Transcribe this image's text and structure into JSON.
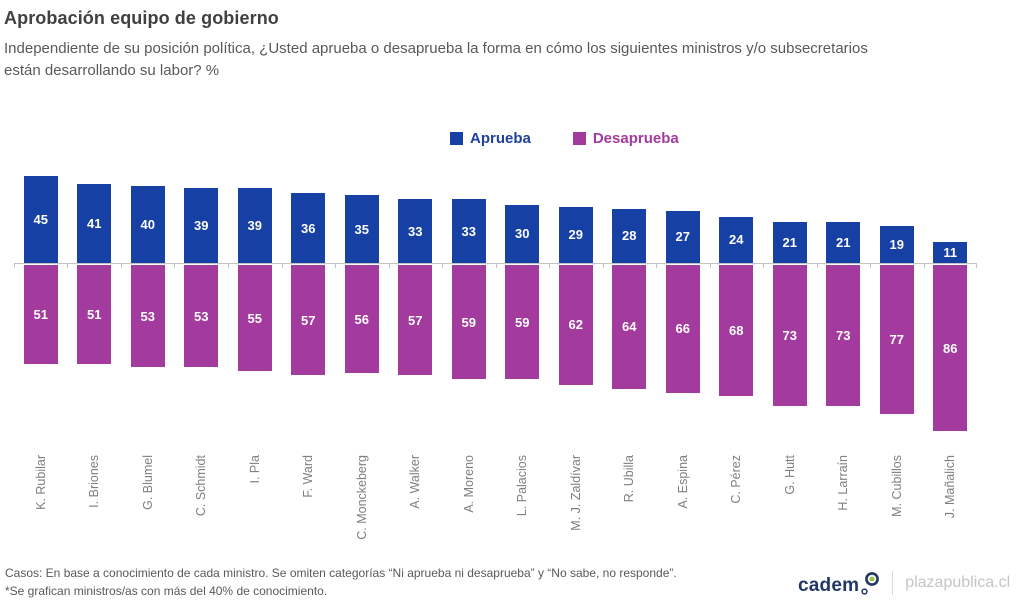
{
  "header": {
    "title": "Aprobación equipo de gobierno",
    "subtitle_lines": [
      "Independiente de su posición política, ¿Usted aprueba o desaprueba la forma en cómo los siguientes ministros y/o subsecretarios",
      "están desarrollando su labor? %"
    ]
  },
  "chart_data": {
    "type": "bar",
    "subtype": "diverging-vertical",
    "title": "Aprobación equipo de gobierno",
    "legend_position": "top-center",
    "grid": false,
    "value_labels": "inside-center",
    "baseline": 0,
    "categories": [
      "K. Rubilar",
      "I. Briones",
      "G. Blumel",
      "C. Schmidt",
      "I. Pla",
      "F. Ward",
      "C. Monckeberg",
      "A. Walker",
      "A. Moreno",
      "L. Palacios",
      "M. J. Zaldívar",
      "R. Ubilla",
      "A. Espina",
      "C. Pérez",
      "G. Hutt",
      "H. Larraín",
      "M. Cubillos",
      "J. Mañalich"
    ],
    "series": [
      {
        "name": "Aprueba",
        "direction": "up",
        "color": "#1640a3",
        "values": [
          45,
          41,
          40,
          39,
          39,
          36,
          35,
          33,
          33,
          30,
          29,
          28,
          27,
          24,
          21,
          21,
          19,
          11
        ]
      },
      {
        "name": "Desaprueba",
        "direction": "down",
        "color": "#a33a9d",
        "values": [
          51,
          51,
          53,
          53,
          55,
          57,
          56,
          57,
          59,
          59,
          62,
          64,
          66,
          68,
          73,
          73,
          77,
          86
        ]
      }
    ]
  },
  "footer": {
    "lines": [
      "Casos: En base a conocimiento de cada ministro. Se omiten categorías “Ni aprueba ni desaprueba” y “No sabe, no responde”.",
      "*Se grafican ministros/as con más del 40% de conocimiento."
    ]
  },
  "brand": {
    "cadem": "cadem",
    "site": "plazapublica.cl"
  },
  "colors": {
    "approve": "#1640a3",
    "disapprove": "#a33a9d",
    "title": "#404040",
    "subtitle": "#595959",
    "axis": "#c3c3c3",
    "category_label": "#7f7f7f",
    "cadem_navy": "#1f3864",
    "cadem_green": "#8dc63f"
  }
}
